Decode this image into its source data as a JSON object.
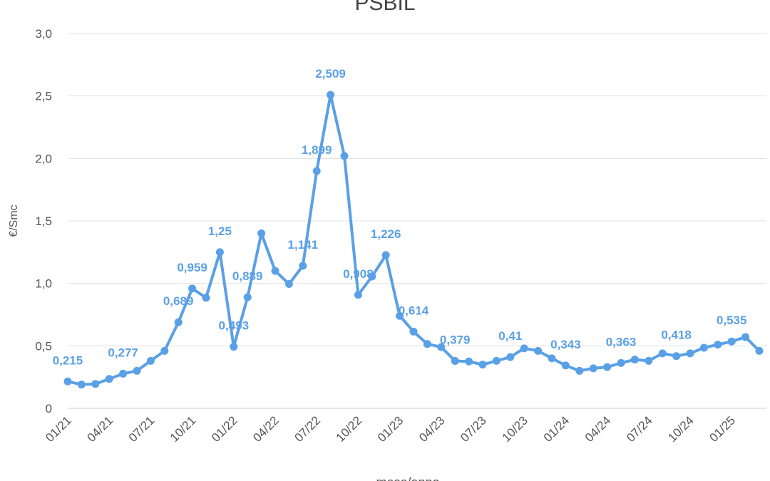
{
  "chart_data": {
    "type": "line",
    "title": "PSBIL",
    "x_label": "mese/anno",
    "y_label": "€/Smc",
    "categories": [
      "01/21",
      null,
      null,
      "04/21",
      null,
      null,
      "07/21",
      null,
      null,
      "10/21",
      null,
      null,
      "01/22",
      null,
      null,
      "04/22",
      null,
      null,
      "07/22",
      null,
      null,
      "10/22",
      null,
      null,
      "01/23",
      null,
      null,
      "04/23",
      null,
      null,
      "07/23",
      null,
      null,
      "10/23",
      null,
      null,
      "01/24",
      null,
      null,
      "04/24",
      null,
      null,
      "07/24",
      null,
      null,
      "10/24",
      null,
      null,
      "01/25",
      null,
      null
    ],
    "series": [
      {
        "name": "PSBIL",
        "color": "#5aa0e6",
        "values": [
          0.215,
          0.19,
          0.195,
          0.235,
          0.277,
          0.3,
          0.38,
          0.46,
          0.689,
          0.959,
          0.885,
          1.25,
          0.493,
          0.889,
          1.4,
          1.1,
          0.995,
          1.141,
          1.899,
          2.509,
          2.02,
          0.908,
          1.055,
          1.226,
          0.74,
          0.614,
          0.515,
          0.49,
          0.379,
          0.375,
          0.35,
          0.38,
          0.41,
          0.48,
          0.46,
          0.4,
          0.343,
          0.3,
          0.32,
          0.33,
          0.363,
          0.39,
          0.38,
          0.44,
          0.418,
          0.44,
          0.485,
          0.51,
          0.535,
          0.57,
          0.46
        ],
        "value_labels": [
          "0,215",
          null,
          null,
          null,
          "0,277",
          null,
          null,
          null,
          "0,689",
          "0,959",
          null,
          "1,25",
          "0,493",
          "0,889",
          null,
          null,
          null,
          "1,141",
          "1,899",
          "2,509",
          null,
          "0,908",
          null,
          "1,226",
          null,
          "0,614",
          null,
          null,
          "0,379",
          null,
          null,
          null,
          "0,41",
          null,
          null,
          null,
          "0,343",
          null,
          null,
          null,
          "0,363",
          null,
          null,
          null,
          "0,418",
          null,
          null,
          null,
          "0,535",
          null,
          null
        ]
      }
    ],
    "ylim": [
      0,
      3
    ],
    "yticks": [
      0,
      {
        "value": 0.5,
        "label": "0,5"
      },
      {
        "value": 1,
        "label": "1,0"
      },
      {
        "value": 1.5,
        "label": "1,5"
      },
      {
        "value": 2,
        "label": "2,0"
      },
      {
        "value": 2.5,
        "label": "2,5"
      },
      {
        "value": 3,
        "label": "3,0"
      }
    ],
    "grid": true
  }
}
